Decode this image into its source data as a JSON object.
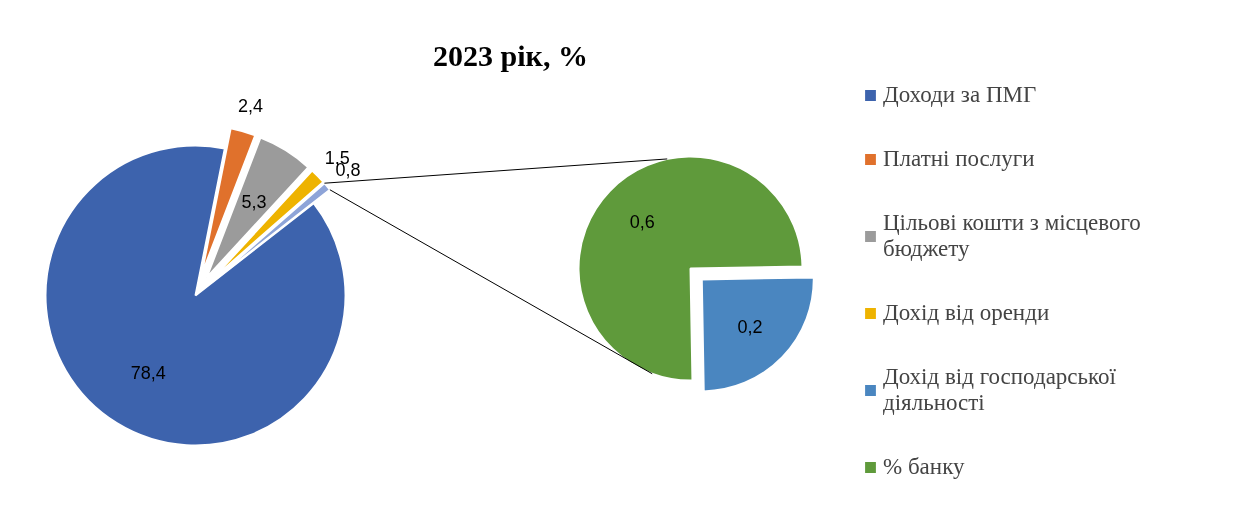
{
  "chart_data": [
    {
      "type": "pie",
      "title": "2023 рік, %",
      "categories": [
        "Доходи за ПМГ",
        "Платні послуги",
        "Цільові кошти з місцевого бюджету",
        "Дохід від оренди",
        null
      ],
      "values": [
        78.4,
        2.4,
        5.3,
        1.5,
        0.8
      ],
      "colors": [
        "#3d63ad",
        "#e0712c",
        "#9b9b9b",
        "#eeb300",
        "#8ea4d8"
      ],
      "value_labels": [
        "78,4",
        "2,4",
        "5,3",
        "1,5",
        "0,8"
      ],
      "legend": "right"
    },
    {
      "type": "pie",
      "categories": [
        "Дохід від господарської діяльності",
        "% банку"
      ],
      "values": [
        0.2,
        0.6
      ],
      "colors": [
        "#4a86c0",
        "#5f9a3b"
      ],
      "value_labels": [
        "0,2",
        "0,6"
      ],
      "legend": "right"
    }
  ]
}
